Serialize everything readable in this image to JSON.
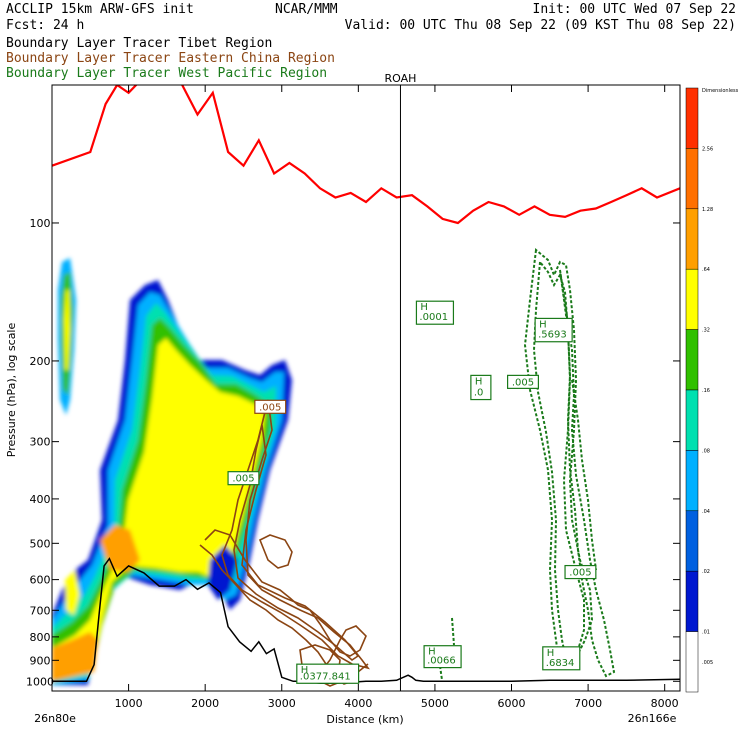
{
  "header": {
    "line1_left": "ACCLIP 15km ARW-GFS init",
    "line1_center": "NCAR/MMM",
    "line1_right": "Init: 00 UTC Wed 07 Sep 22",
    "line2_left": "Fcst:   24 h",
    "line2_right": "Valid: 00 UTC Thu 08 Sep 22 (09 KST Thu 08 Sep 22)"
  },
  "legend": [
    {
      "prefix": "Boundary Layer Tracer",
      "region": "Tibet Region",
      "color": "#000000"
    },
    {
      "prefix": "Boundary Layer Tracer",
      "region": "Eastern China Region",
      "color": "#8B4513"
    },
    {
      "prefix": "Boundary Layer Tracer",
      "region": "West Pacific Region",
      "color": "#1a7a1a"
    }
  ],
  "colors": {
    "tropopause": "#ff0000",
    "terrain": "#000000",
    "east_china": "#8B4513",
    "west_pacific": "#1a7a1a"
  },
  "chart_data": {
    "type": "area",
    "title": "",
    "xlabel": "Distance (km)",
    "ylabel": "Pressure (hPa), log scale",
    "xlim": [
      0,
      8200
    ],
    "ylim": [
      1050,
      50
    ],
    "y_scale": "log",
    "x_ticks": [
      1000,
      2000,
      3000,
      4000,
      5000,
      6000,
      7000,
      8000
    ],
    "y_ticks": [
      100,
      200,
      300,
      400,
      500,
      600,
      700,
      800,
      900,
      1000
    ],
    "x_start_label": "26n80e",
    "x_end_label": "26n166e",
    "marker": {
      "label": "ROAH",
      "x": 4550
    },
    "colorbar": {
      "levels": [
        "Dimensionless",
        "2.56",
        "1.28",
        ".64",
        ".32",
        ".16",
        ".08",
        ".04",
        ".02",
        ".01",
        ".005"
      ],
      "colors": [
        "#ff3000",
        "#ff7000",
        "#ff9f00",
        "#ffff00",
        "#30c000",
        "#00e0b0",
        "#00b0ff",
        "#0060e0",
        "#0018d0",
        "#ffffff"
      ]
    },
    "tropopause": {
      "x": [
        0,
        500,
        700,
        850,
        1000,
        1200,
        1350,
        1500,
        1700,
        1900,
        2100,
        2300,
        2500,
        2700,
        2900,
        3100,
        3300,
        3500,
        3700,
        3900,
        4100,
        4300,
        4500,
        4700,
        4900,
        5100,
        5300,
        5500,
        5700,
        5900,
        6100,
        6300,
        6500,
        6700,
        6900,
        7100,
        7300,
        7500,
        7700,
        7900,
        8200
      ],
      "p": [
        75,
        70,
        55,
        50,
        52,
        48,
        40,
        45,
        50,
        58,
        52,
        70,
        75,
        66,
        78,
        74,
        78,
        84,
        88,
        86,
        90,
        84,
        88,
        87,
        92,
        98,
        100,
        94,
        90,
        92,
        96,
        92,
        96,
        97,
        94,
        93,
        90,
        87,
        84,
        88,
        84
      ]
    },
    "terrain": {
      "x": [
        0,
        150,
        300,
        450,
        550,
        620,
        680,
        750,
        850,
        1000,
        1200,
        1400,
        1600,
        1750,
        1900,
        2050,
        2200,
        2300,
        2450,
        2600,
        2700,
        2800,
        2900,
        3000,
        3150,
        3300,
        3500,
        3700,
        3900,
        4100,
        4300,
        4500,
        4650,
        4700,
        4750,
        4850,
        5000,
        5500,
        6000,
        6500,
        7000,
        7500,
        8200
      ],
      "p": [
        1000,
        1000,
        1000,
        1000,
        920,
        700,
        560,
        540,
        590,
        560,
        580,
        620,
        620,
        600,
        630,
        610,
        640,
        760,
        820,
        860,
        820,
        870,
        850,
        980,
        1000,
        1000,
        1010,
        1010,
        1005,
        1000,
        1000,
        995,
        970,
        980,
        995,
        1000,
        1000,
        1000,
        1000,
        995,
        995,
        995,
        990
      ]
    },
    "contour_labels": [
      {
        "text": ".005",
        "x": 2850,
        "p": 255,
        "series": "east_china"
      },
      {
        "text": ".005",
        "x": 2500,
        "p": 365,
        "series": "west_pacific"
      },
      {
        "text": "H",
        "x": 5000,
        "p": 155,
        "series": "west_pacific"
      },
      {
        "text": ".0001",
        "x": 5000,
        "p": 163,
        "series": "west_pacific"
      },
      {
        "text": "H",
        "x": 6550,
        "p": 169,
        "series": "west_pacific"
      },
      {
        "text": ".5693",
        "x": 6550,
        "p": 178,
        "series": "west_pacific"
      },
      {
        "text": "H",
        "x": 5600,
        "p": 225,
        "series": "west_pacific"
      },
      {
        "text": ".0",
        "x": 5600,
        "p": 238,
        "series": "west_pacific"
      },
      {
        "text": ".005",
        "x": 6150,
        "p": 225,
        "series": "west_pacific"
      },
      {
        "text": ".005",
        "x": 6900,
        "p": 585,
        "series": "west_pacific"
      },
      {
        "text": "H",
        "x": 5100,
        "p": 875,
        "series": "west_pacific"
      },
      {
        "text": ".0066",
        "x": 5100,
        "p": 915,
        "series": "west_pacific"
      },
      {
        "text": "H",
        "x": 6650,
        "p": 880,
        "series": "west_pacific"
      },
      {
        "text": ".6834",
        "x": 6650,
        "p": 925,
        "series": "west_pacific"
      },
      {
        "text": "H",
        "x": 3600,
        "p": 960,
        "series": "west_pacific"
      },
      {
        "text": ".0377.841",
        "x": 3600,
        "p": 990,
        "series": "west_pacific"
      }
    ]
  }
}
